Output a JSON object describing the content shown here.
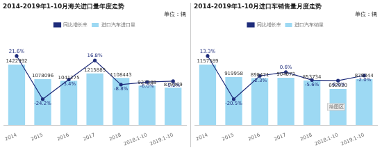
{
  "chart_data": [
    {
      "type": "bar",
      "title": "2014-2019年1-10月海关进口量年度走势",
      "subtitle": "单位：辆",
      "categories": [
        "2014",
        "2015",
        "2016",
        "2017",
        "2018",
        "2018.1-10",
        "2019.1-10"
      ],
      "series": [
        {
          "name": "进口汽车进口量",
          "type": "bar",
          "color": "#9DD9F3",
          "values": [
            1422992,
            1078096,
            1041275,
            1215885,
            1108443,
            927388,
            879069
          ]
        },
        {
          "name": "同比增长率",
          "type": "line",
          "color": "#1F2D7B",
          "marker": "circle",
          "axis": "y2",
          "values": [
            21.6,
            -24.2,
            -3.4,
            16.8,
            -8.8,
            -6.0,
            -5.2
          ],
          "value_labels": [
            "21.6%",
            "-24.2%",
            "-3.4%",
            "16.8%",
            "-8.8%",
            "-6.0%",
            "-5.2%"
          ]
        }
      ],
      "ylim": [
        0,
        2134488
      ],
      "y2lim": [
        -51.68,
        44.5
      ],
      "data_labels": true,
      "tick_labels": "x",
      "grid": false,
      "legend": "top"
    },
    {
      "type": "bar",
      "title": "2014-2019年1-10月进口车销售量月度走势",
      "subtitle": "单位：辆",
      "categories": [
        "2014",
        "2015",
        "2016",
        "2017",
        "2018",
        "2018.1-10",
        "2019.1-10"
      ],
      "series": [
        {
          "name": "进口汽车销量",
          "type": "bar",
          "color": "#9DD9F3",
          "values": [
            1157589,
            919958,
            898471,
            904072,
            853734,
            692920,
            879044
          ]
        },
        {
          "name": "同比增长率",
          "type": "line",
          "color": "#1F2D7B",
          "marker": "circle",
          "axis": "y2",
          "values": [
            13.3,
            -20.5,
            -2.3,
            0.6,
            -5.6,
            -6.0,
            -2.0
          ],
          "value_labels": [
            "13.3%",
            "-20.5%",
            "-2.3%",
            "0.6%",
            "-5.6%",
            "-6.0%",
            "-2.0%"
          ]
        }
      ],
      "ylim": [
        0,
        1736383.5
      ],
      "y2lim": [
        -40.78,
        30.2
      ],
      "data_labels": true,
      "tick_labels": "x",
      "grid": false,
      "legend": "top",
      "annotations": [
        "绘图区"
      ]
    }
  ]
}
